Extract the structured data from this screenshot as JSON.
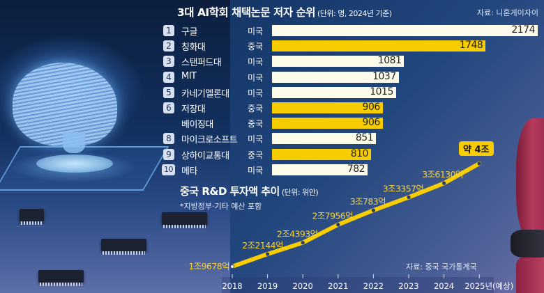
{
  "bar_chart_header": {
    "title": "3대 AI학회 채택논문 저자 순위",
    "unit": "(단위: 명, 2024년 기준)",
    "source": "자료: 니혼게이자이"
  },
  "line_chart_header": {
    "title": "중국 R&D 투자액 추이",
    "unit": "(단위: 위안)",
    "note": "*지방정부·기타 예산 포함",
    "source": "자료: 중국 국가통계국",
    "callout": "약 4조"
  },
  "colors": {
    "china_bar": "#f7cd00",
    "us_bar": "#fdfbea",
    "line": "#f7cd00",
    "point": "#2b3a66"
  },
  "chart_data": [
    {
      "type": "bar",
      "orientation": "horizontal",
      "title": "3대 AI학회 채택논문 저자 순위",
      "unit": "(단위: 명, 2024년 기준)",
      "xlim": [
        0,
        2174
      ],
      "rows": [
        {
          "rank": "1",
          "name": "구글",
          "country": "미국",
          "value": 2174,
          "label": "2174"
        },
        {
          "rank": "2",
          "name": "칭화대",
          "country": "중국",
          "value": 1748,
          "label": "1748"
        },
        {
          "rank": "3",
          "name": "스탠퍼드대",
          "country": "미국",
          "value": 1081,
          "label": "1081"
        },
        {
          "rank": "4",
          "name": "MIT",
          "country": "미국",
          "value": 1037,
          "label": "1037"
        },
        {
          "rank": "5",
          "name": "카네기멜론대",
          "country": "미국",
          "value": 1015,
          "label": "1015"
        },
        {
          "rank": "6",
          "name": "저장대",
          "country": "중국",
          "value": 906,
          "label": "906"
        },
        {
          "rank": "",
          "name": "베이징대",
          "country": "중국",
          "value": 906,
          "label": "906"
        },
        {
          "rank": "8",
          "name": "마이크로소프트",
          "country": "미국",
          "value": 851,
          "label": "851"
        },
        {
          "rank": "9",
          "name": "상하이교통대",
          "country": "중국",
          "value": 810,
          "label": "810"
        },
        {
          "rank": "10",
          "name": "메타",
          "country": "미국",
          "value": 782,
          "label": "782"
        }
      ]
    },
    {
      "type": "line",
      "title": "중국 R&D 투자액 추이",
      "unit": "(단위: 위안)",
      "x": [
        "2018",
        "2019",
        "2020",
        "2021",
        "2022",
        "2023",
        "2024",
        "2025년(예상)"
      ],
      "values_trillion": [
        1.9678,
        2.2144,
        2.4393,
        2.7956,
        3.0783,
        3.3357,
        3.613,
        4.0
      ],
      "labels": [
        "1조9678억",
        "2조2144억",
        "2조4393억",
        "2조7956억",
        "3조783억",
        "3조3357억",
        "3조6130억",
        ""
      ],
      "annotation": "약 4조"
    }
  ]
}
